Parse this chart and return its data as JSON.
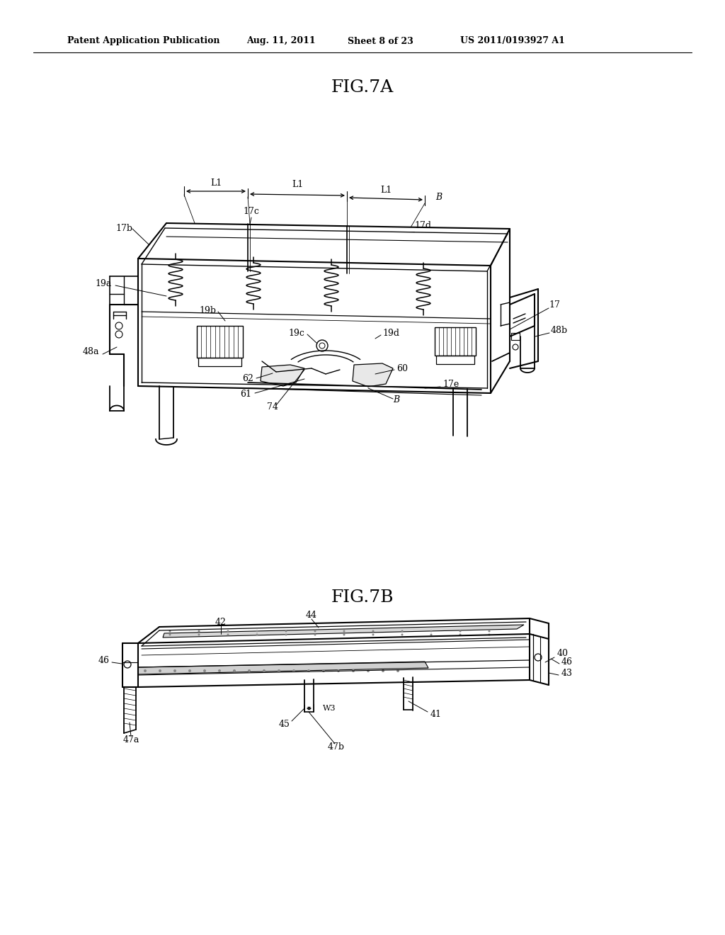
{
  "background_color": "#ffffff",
  "fig_width": 10.24,
  "fig_height": 13.2,
  "header_text": "Patent Application Publication",
  "header_date": "Aug. 11, 2011",
  "header_sheet": "Sheet 8 of 23",
  "header_patent": "US 2011/0193927 A1",
  "fig7a_title": "FIG.7A",
  "fig7b_title": "FIG.7B"
}
